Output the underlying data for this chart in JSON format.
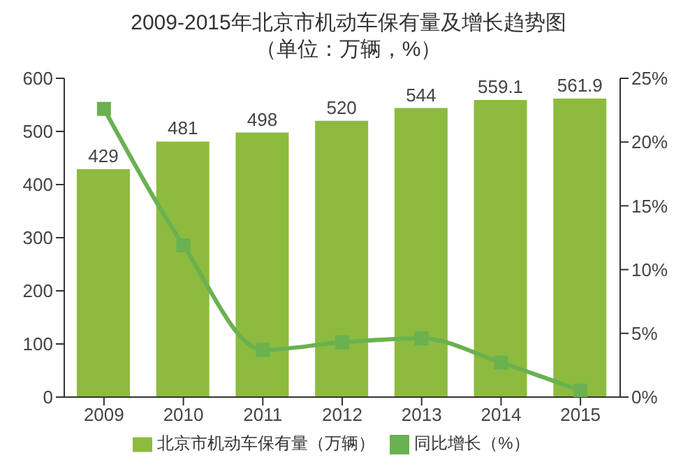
{
  "chart_data": {
    "type": "bar",
    "title": "2009-2015年北京市机动车保有量及增长趋势图",
    "subtitle": "（单位：万辆，%）",
    "categories": [
      "2009",
      "2010",
      "2011",
      "2012",
      "2013",
      "2014",
      "2015"
    ],
    "series": [
      {
        "name": "北京市机动车保有量（万辆）",
        "color": "#8dbb3f",
        "values": [
          429,
          481,
          498,
          520,
          544,
          559.1,
          561.9
        ],
        "data_labels": true
      },
      {
        "name": "同比增长（%）",
        "type": "line",
        "axis": "y2",
        "color": "#6ab150",
        "values": [
          22.6,
          11.9,
          3.7,
          4.3,
          4.6,
          2.7,
          0.5
        ],
        "marker": "square"
      }
    ],
    "ylim": [
      0,
      600
    ],
    "yticks": [
      0,
      100,
      200,
      300,
      400,
      500,
      600
    ],
    "y2lim": [
      0,
      25
    ],
    "y2ticks": [
      {
        "value": 0,
        "label": "0%"
      },
      {
        "value": 5,
        "label": "5%"
      },
      {
        "value": 10,
        "label": "10%"
      },
      {
        "value": 15,
        "label": "15%"
      },
      {
        "value": 20,
        "label": "20%"
      },
      {
        "value": 25,
        "label": "25%"
      }
    ],
    "legend": "bottom",
    "grid": false
  }
}
